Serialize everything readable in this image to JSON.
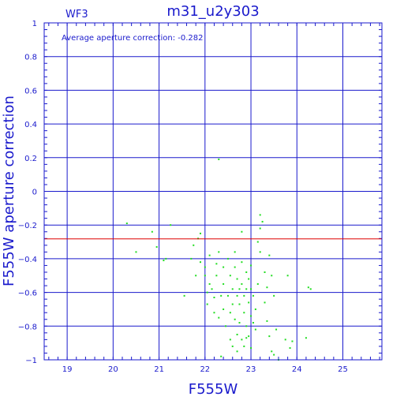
{
  "chart_data": {
    "type": "scatter",
    "title": "m31_u2y303",
    "panel_label": "WF3",
    "annotation": "Average aperture correction: -0.282",
    "xlabel": "F555W",
    "ylabel": "F555W aperture correction",
    "xlim": [
      18.5,
      25.85
    ],
    "ylim": [
      -1,
      1
    ],
    "x_ticks": [
      "19",
      "20",
      "21",
      "22",
      "23",
      "24",
      "25"
    ],
    "y_ticks": [
      "1",
      "0.8",
      "0.6",
      "0.4",
      "0.2",
      "0",
      "−0.2",
      "−0.4",
      "−0.6",
      "−0.8",
      "−1"
    ],
    "y_tick_values": [
      1,
      0.8,
      0.6,
      0.4,
      0.2,
      0,
      -0.2,
      -0.4,
      -0.6,
      -0.8,
      -1
    ],
    "x_tick_values": [
      19,
      20,
      21,
      22,
      23,
      24,
      25
    ],
    "grid": true,
    "reference_line": {
      "y": -0.282,
      "color": "#dd0000"
    },
    "colors": {
      "axis": "#1a1acc",
      "points": "#22dd22",
      "reference": "#dd0000"
    },
    "series": [
      {
        "points": [
          [
            20.3,
            -0.19
          ],
          [
            20.5,
            -0.36
          ],
          [
            20.85,
            -0.24
          ],
          [
            20.95,
            -0.33
          ],
          [
            21.1,
            -0.41
          ],
          [
            21.15,
            -0.4
          ],
          [
            21.25,
            -0.2
          ],
          [
            21.55,
            -0.62
          ],
          [
            21.7,
            -0.4
          ],
          [
            21.75,
            -0.32
          ],
          [
            21.8,
            -0.5
          ],
          [
            21.85,
            -0.28
          ],
          [
            21.9,
            -0.25
          ],
          [
            21.9,
            -0.42
          ],
          [
            22.0,
            -0.45
          ],
          [
            22.0,
            -0.5
          ],
          [
            22.05,
            -0.6
          ],
          [
            22.05,
            -0.67
          ],
          [
            22.1,
            -0.38
          ],
          [
            22.1,
            -0.55
          ],
          [
            22.15,
            -0.58
          ],
          [
            22.2,
            -0.63
          ],
          [
            22.2,
            -0.72
          ],
          [
            22.25,
            -0.43
          ],
          [
            22.25,
            -0.5
          ],
          [
            22.3,
            0.19
          ],
          [
            22.3,
            -0.36
          ],
          [
            22.3,
            -0.75
          ],
          [
            22.35,
            -0.62
          ],
          [
            22.35,
            -0.98
          ],
          [
            22.4,
            -0.45
          ],
          [
            22.4,
            -0.55
          ],
          [
            22.4,
            -0.7
          ],
          [
            22.45,
            -0.8
          ],
          [
            22.5,
            -0.4
          ],
          [
            22.5,
            -0.62
          ],
          [
            22.55,
            -0.5
          ],
          [
            22.55,
            -0.72
          ],
          [
            22.55,
            -0.88
          ],
          [
            22.6,
            -0.58
          ],
          [
            22.6,
            -0.67
          ],
          [
            22.6,
            -0.92
          ],
          [
            22.65,
            -0.36
          ],
          [
            22.65,
            -0.45
          ],
          [
            22.65,
            -0.76
          ],
          [
            22.7,
            -0.52
          ],
          [
            22.7,
            -0.62
          ],
          [
            22.7,
            -0.85
          ],
          [
            22.7,
            -0.95
          ],
          [
            22.75,
            -0.58
          ],
          [
            22.75,
            -0.67
          ],
          [
            22.75,
            -0.78
          ],
          [
            22.8,
            -0.24
          ],
          [
            22.8,
            -0.42
          ],
          [
            22.8,
            -0.55
          ],
          [
            22.8,
            -0.88
          ],
          [
            22.85,
            -0.62
          ],
          [
            22.85,
            -0.72
          ],
          [
            22.85,
            -0.92
          ],
          [
            22.9,
            -0.48
          ],
          [
            22.9,
            -0.58
          ],
          [
            22.9,
            -0.8
          ],
          [
            22.9,
            -0.87
          ],
          [
            22.95,
            -0.52
          ],
          [
            22.95,
            -0.66
          ],
          [
            22.95,
            -0.86
          ],
          [
            23.0,
            -0.44
          ],
          [
            23.0,
            -0.58
          ],
          [
            23.0,
            -0.74
          ],
          [
            23.0,
            -0.93
          ],
          [
            23.05,
            -0.62
          ],
          [
            23.05,
            -0.78
          ],
          [
            23.1,
            -0.7
          ],
          [
            23.1,
            -0.82
          ],
          [
            23.15,
            -0.55
          ],
          [
            23.15,
            -0.3
          ],
          [
            23.2,
            -0.22
          ],
          [
            23.2,
            -0.14
          ],
          [
            23.2,
            -0.36
          ],
          [
            23.25,
            -0.18
          ],
          [
            23.3,
            -0.66
          ],
          [
            23.3,
            -0.48
          ],
          [
            23.35,
            -0.77
          ],
          [
            23.35,
            -0.57
          ],
          [
            23.4,
            -0.86
          ],
          [
            23.4,
            -0.38
          ],
          [
            23.45,
            -0.5
          ],
          [
            23.45,
            -0.95
          ],
          [
            23.5,
            -0.62
          ],
          [
            23.5,
            -0.97
          ],
          [
            23.55,
            -0.82
          ],
          [
            23.6,
            -1.0
          ],
          [
            23.75,
            -0.88
          ],
          [
            23.8,
            -0.5
          ],
          [
            23.85,
            -0.93
          ],
          [
            23.9,
            -0.89
          ],
          [
            24.2,
            -0.87
          ],
          [
            24.25,
            -0.57
          ],
          [
            24.3,
            -0.58
          ]
        ]
      }
    ]
  }
}
